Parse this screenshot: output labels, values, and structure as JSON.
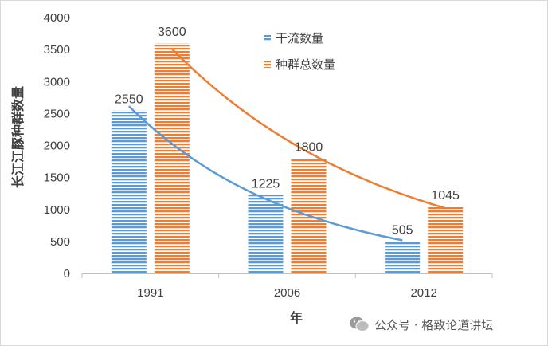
{
  "chart_data": {
    "type": "bar",
    "categories": [
      "1991",
      "2006",
      "2012"
    ],
    "series": [
      {
        "name": "干流数量",
        "values": [
          2550,
          1225,
          505
        ],
        "color": "#5b9bd5",
        "trend_color": "#5b9bd5"
      },
      {
        "name": "种群总数量",
        "values": [
          3600,
          1800,
          1045
        ],
        "color": "#ed7d31",
        "trend_color": "#ed7d31"
      }
    ],
    "xlabel": "年",
    "ylabel": "长江江豚种群数量",
    "ylim": [
      0,
      4000
    ],
    "yticks": [
      0,
      500,
      1000,
      1500,
      2000,
      2500,
      3000,
      3500,
      4000
    ],
    "grid": false,
    "legend_position": "top-right",
    "trendlines": true
  },
  "watermark": {
    "icon": "wechat-icon",
    "text": "公众号 · 格致论道讲坛"
  }
}
